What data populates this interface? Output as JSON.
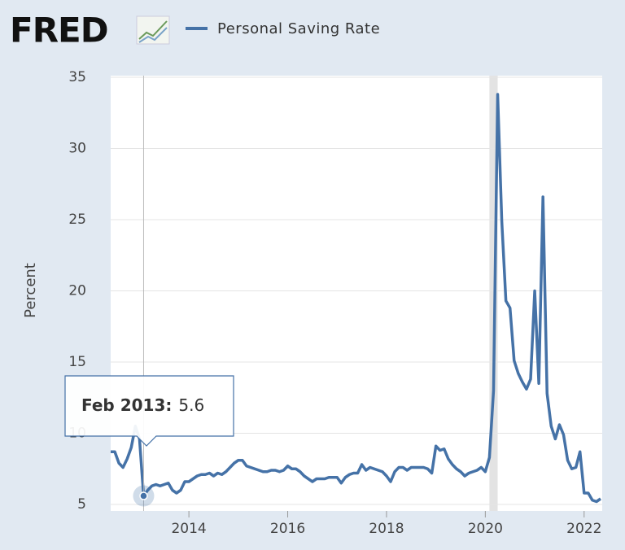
{
  "header": {
    "brand": "FRED"
  },
  "chart_data": {
    "type": "line",
    "y_label": "Percent",
    "x": [
      "2012-06",
      "2012-07",
      "2012-08",
      "2012-09",
      "2012-10",
      "2012-11",
      "2012-12",
      "2013-01",
      "2013-02",
      "2013-03",
      "2013-04",
      "2013-05",
      "2013-06",
      "2013-07",
      "2013-08",
      "2013-09",
      "2013-10",
      "2013-11",
      "2013-12",
      "2014-01",
      "2014-02",
      "2014-03",
      "2014-04",
      "2014-05",
      "2014-06",
      "2014-07",
      "2014-08",
      "2014-09",
      "2014-10",
      "2014-11",
      "2014-12",
      "2015-01",
      "2015-02",
      "2015-03",
      "2015-04",
      "2015-05",
      "2015-06",
      "2015-07",
      "2015-08",
      "2015-09",
      "2015-10",
      "2015-11",
      "2015-12",
      "2016-01",
      "2016-02",
      "2016-03",
      "2016-04",
      "2016-05",
      "2016-06",
      "2016-07",
      "2016-08",
      "2016-09",
      "2016-10",
      "2016-11",
      "2016-12",
      "2017-01",
      "2017-02",
      "2017-03",
      "2017-04",
      "2017-05",
      "2017-06",
      "2017-07",
      "2017-08",
      "2017-09",
      "2017-10",
      "2017-11",
      "2017-12",
      "2018-01",
      "2018-02",
      "2018-03",
      "2018-04",
      "2018-05",
      "2018-06",
      "2018-07",
      "2018-08",
      "2018-09",
      "2018-10",
      "2018-11",
      "2018-12",
      "2019-01",
      "2019-02",
      "2019-03",
      "2019-04",
      "2019-05",
      "2019-06",
      "2019-07",
      "2019-08",
      "2019-09",
      "2019-10",
      "2019-11",
      "2019-12",
      "2020-01",
      "2020-02",
      "2020-03",
      "2020-04",
      "2020-05",
      "2020-06",
      "2020-07",
      "2020-08",
      "2020-09",
      "2020-10",
      "2020-11",
      "2020-12",
      "2021-01",
      "2021-02",
      "2021-03",
      "2021-04",
      "2021-05",
      "2021-06",
      "2021-07",
      "2021-08",
      "2021-09",
      "2021-10",
      "2021-11",
      "2021-12",
      "2022-01",
      "2022-02",
      "2022-03",
      "2022-04",
      "2022-05"
    ],
    "series": [
      {
        "name": "Personal Saving Rate",
        "color": "#4572a7",
        "values": [
          8.7,
          8.7,
          7.9,
          7.6,
          8.2,
          9.0,
          10.5,
          9.6,
          5.6,
          6.0,
          6.3,
          6.4,
          6.3,
          6.4,
          6.5,
          6.0,
          5.8,
          6.0,
          6.6,
          6.6,
          6.8,
          7.0,
          7.1,
          7.1,
          7.2,
          7.0,
          7.2,
          7.1,
          7.3,
          7.6,
          7.9,
          8.1,
          8.1,
          7.7,
          7.6,
          7.5,
          7.4,
          7.3,
          7.3,
          7.4,
          7.4,
          7.3,
          7.4,
          7.7,
          7.5,
          7.5,
          7.3,
          7.0,
          6.8,
          6.6,
          6.8,
          6.8,
          6.8,
          6.9,
          6.9,
          6.9,
          6.5,
          6.9,
          7.1,
          7.2,
          7.2,
          7.8,
          7.4,
          7.6,
          7.5,
          7.4,
          7.3,
          7.0,
          6.6,
          7.3,
          7.6,
          7.6,
          7.4,
          7.6,
          7.6,
          7.6,
          7.6,
          7.5,
          7.2,
          9.1,
          8.8,
          8.9,
          8.2,
          7.8,
          7.5,
          7.3,
          7.0,
          7.2,
          7.3,
          7.4,
          7.6,
          7.3,
          8.3,
          13.0,
          33.8,
          24.9,
          19.3,
          18.8,
          15.1,
          14.2,
          13.6,
          13.1,
          13.8,
          20.0,
          13.5,
          26.6,
          12.8,
          10.5,
          9.6,
          10.6,
          9.9,
          8.1,
          7.5,
          7.6,
          8.7,
          5.8,
          5.8,
          5.3,
          5.2,
          5.4
        ]
      }
    ],
    "xlim": [
      "2012-06",
      "2022-05"
    ],
    "xticks": [
      2014,
      2016,
      2018,
      2020,
      2022
    ],
    "ylim": [
      5,
      35
    ],
    "yticks": [
      5,
      10,
      15,
      20,
      25,
      30,
      35
    ],
    "grid": true,
    "recession": [
      "2020-02",
      "2020-04"
    ],
    "tooltip": {
      "label": "Feb 2013:",
      "x": "2013-02"
    }
  }
}
